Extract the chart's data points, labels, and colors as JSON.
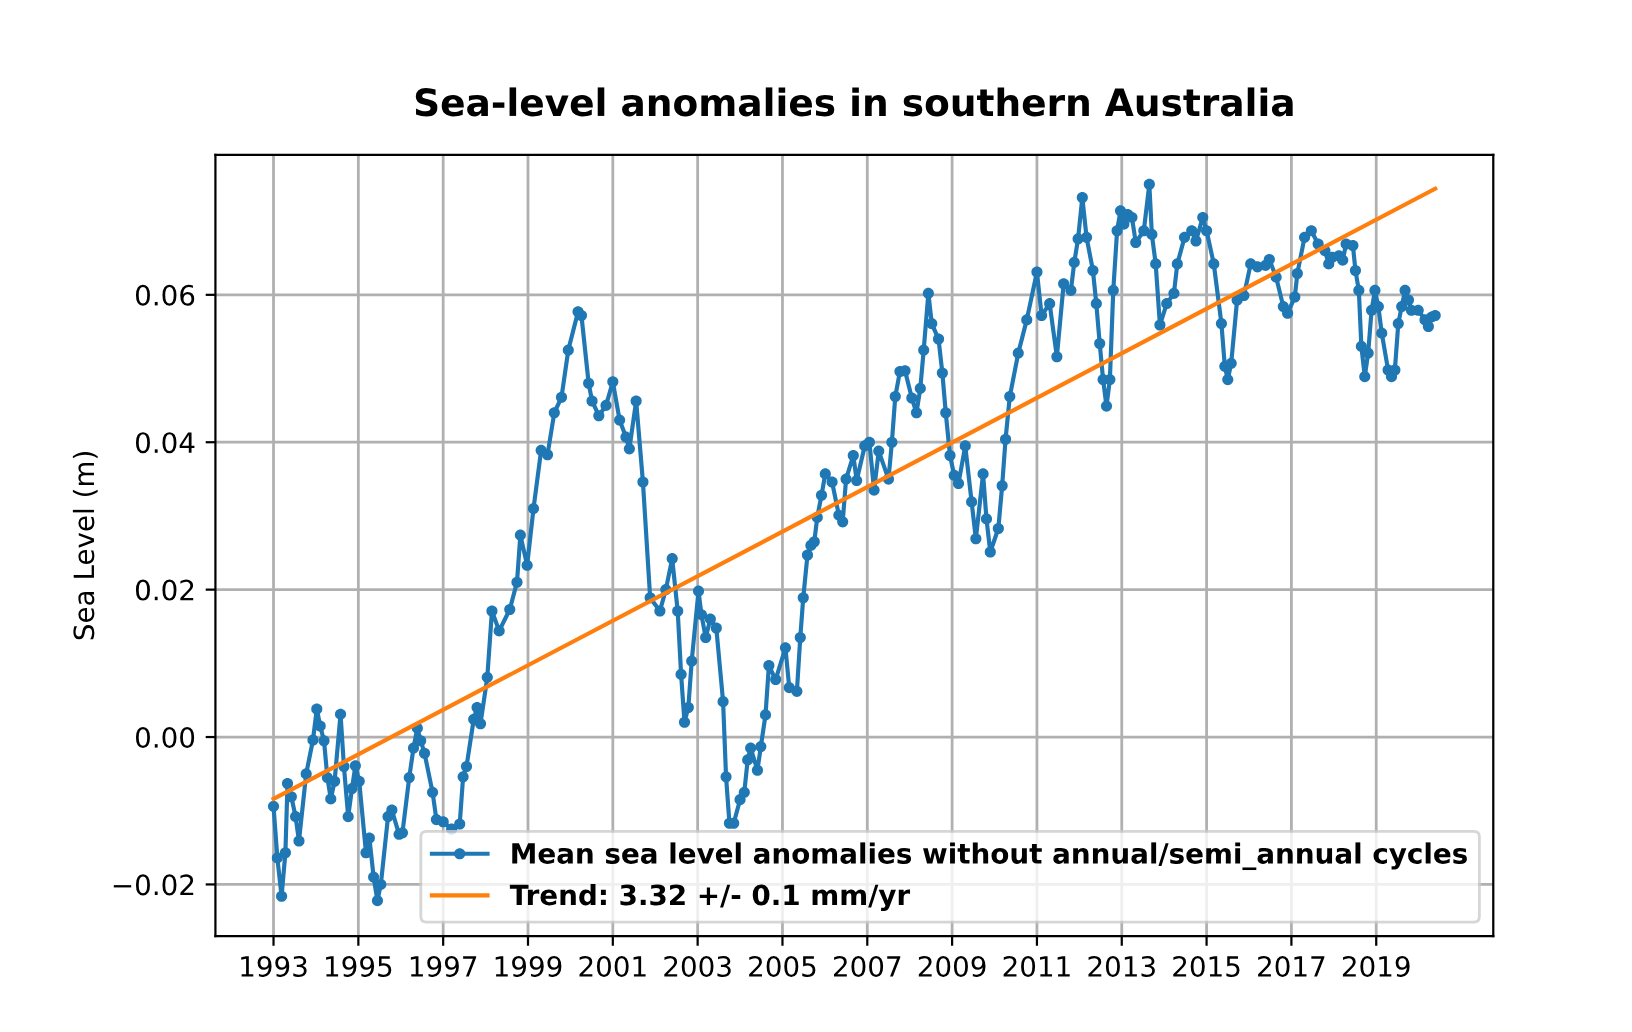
{
  "chart_data": {
    "type": "line",
    "title": "Sea-level anomalies in southern Australia",
    "ylabel": "Sea Level (m)",
    "series": [
      {
        "name": "Mean sea level anomalies without annual/semi_annual cycles",
        "color": "#1f77b4",
        "marker": "circle",
        "x": [
          1993.0,
          1993.09,
          1993.19,
          1993.28,
          1993.33,
          1993.42,
          1993.52,
          1993.6,
          1993.77,
          1993.93,
          1994.02,
          1994.1,
          1994.19,
          1994.27,
          1994.35,
          1994.44,
          1994.58,
          1994.66,
          1994.76,
          1994.85,
          1994.93,
          1995.02,
          1995.18,
          1995.26,
          1995.36,
          1995.45,
          1995.53,
          1995.7,
          1995.79,
          1995.96,
          1996.04,
          1996.2,
          1996.3,
          1996.39,
          1996.47,
          1996.56,
          1996.75,
          1996.84,
          1997.0,
          1997.2,
          1997.39,
          1997.47,
          1997.55,
          1997.72,
          1997.8,
          1997.88,
          1998.04,
          1998.15,
          1998.32,
          1998.57,
          1998.74,
          1998.82,
          1998.98,
          1999.13,
          1999.31,
          1999.46,
          1999.62,
          1999.79,
          1999.95,
          2000.18,
          2000.26,
          2000.43,
          2000.51,
          2000.67,
          2000.84,
          2001.0,
          2001.16,
          2001.31,
          2001.39,
          2001.55,
          2001.71,
          2001.88,
          2002.11,
          2002.25,
          2002.4,
          2002.53,
          2002.61,
          2002.69,
          2002.78,
          2002.86,
          2003.02,
          2003.09,
          2003.19,
          2003.3,
          2003.44,
          2003.6,
          2003.67,
          2003.75,
          2003.85,
          2004.0,
          2004.1,
          2004.18,
          2004.25,
          2004.41,
          2004.49,
          2004.6,
          2004.68,
          2004.84,
          2005.07,
          2005.16,
          2005.34,
          2005.42,
          2005.49,
          2005.59,
          2005.67,
          2005.75,
          2005.82,
          2005.92,
          2006.01,
          2006.17,
          2006.33,
          2006.42,
          2006.5,
          2006.67,
          2006.75,
          2006.94,
          2007.05,
          2007.16,
          2007.27,
          2007.5,
          2007.58,
          2007.66,
          2007.77,
          2007.89,
          2008.05,
          2008.16,
          2008.25,
          2008.33,
          2008.44,
          2008.52,
          2008.68,
          2008.77,
          2008.85,
          2008.95,
          2009.05,
          2009.15,
          2009.31,
          2009.46,
          2009.56,
          2009.73,
          2009.81,
          2009.9,
          2010.09,
          2010.18,
          2010.26,
          2010.36,
          2010.56,
          2010.76,
          2011.0,
          2011.11,
          2011.3,
          2011.47,
          2011.63,
          2011.8,
          2011.88,
          2011.97,
          2012.07,
          2012.17,
          2012.32,
          2012.4,
          2012.48,
          2012.56,
          2012.64,
          2012.72,
          2012.8,
          2012.89,
          2012.97,
          2013.05,
          2013.14,
          2013.24,
          2013.33,
          2013.52,
          2013.65,
          2013.71,
          2013.8,
          2013.9,
          2014.06,
          2014.23,
          2014.31,
          2014.48,
          2014.65,
          2014.75,
          2014.91,
          2015.0,
          2015.17,
          2015.35,
          2015.43,
          2015.5,
          2015.58,
          2015.72,
          2015.88,
          2016.04,
          2016.2,
          2016.39,
          2016.48,
          2016.64,
          2016.81,
          2016.91,
          2017.08,
          2017.14,
          2017.31,
          2017.47,
          2017.63,
          2017.79,
          2017.88,
          2017.96,
          2018.12,
          2018.21,
          2018.29,
          2018.45,
          2018.51,
          2018.59,
          2018.65,
          2018.73,
          2018.81,
          2018.89,
          2018.97,
          2019.05,
          2019.13,
          2019.28,
          2019.36,
          2019.44,
          2019.52,
          2019.6,
          2019.68,
          2019.76,
          2019.83,
          2019.99,
          2020.15,
          2020.23,
          2020.31,
          2020.39
        ],
        "values": [
          -0.0094,
          -0.0164,
          -0.0216,
          -0.0157,
          -0.0063,
          -0.0081,
          -0.0108,
          -0.0141,
          -0.005,
          -0.0004,
          0.0038,
          0.0015,
          -0.0005,
          -0.0055,
          -0.0084,
          -0.006,
          0.0031,
          -0.004,
          -0.0108,
          -0.007,
          -0.0039,
          -0.006,
          -0.0157,
          -0.0137,
          -0.019,
          -0.0222,
          -0.02,
          -0.0108,
          -0.0099,
          -0.0132,
          -0.013,
          -0.0055,
          -0.0015,
          0.0012,
          -0.0005,
          -0.0022,
          -0.0075,
          -0.0112,
          -0.0115,
          -0.0125,
          -0.0118,
          -0.0054,
          -0.004,
          0.0024,
          0.004,
          0.0018,
          0.0081,
          0.0171,
          0.0144,
          0.0173,
          0.021,
          0.0274,
          0.0233,
          0.031,
          0.0389,
          0.0383,
          0.044,
          0.0461,
          0.0525,
          0.0577,
          0.0572,
          0.048,
          0.0456,
          0.0436,
          0.045,
          0.0482,
          0.043,
          0.0407,
          0.0391,
          0.0456,
          0.0346,
          0.0189,
          0.0171,
          0.02,
          0.0242,
          0.0171,
          0.0085,
          0.002,
          0.004,
          0.0103,
          0.0198,
          0.0166,
          0.0135,
          0.016,
          0.0148,
          0.0048,
          -0.0054,
          -0.0117,
          -0.0117,
          -0.0085,
          -0.0075,
          -0.0031,
          -0.0015,
          -0.0045,
          -0.0013,
          0.003,
          0.0097,
          0.0078,
          0.0121,
          0.0067,
          0.0062,
          0.0135,
          0.0189,
          0.0247,
          0.026,
          0.0265,
          0.0298,
          0.0328,
          0.0357,
          0.0346,
          0.0301,
          0.0292,
          0.035,
          0.0382,
          0.0348,
          0.0395,
          0.04,
          0.0335,
          0.0388,
          0.035,
          0.04,
          0.0462,
          0.0496,
          0.0497,
          0.046,
          0.044,
          0.0473,
          0.0525,
          0.0602,
          0.0561,
          0.054,
          0.0494,
          0.044,
          0.0382,
          0.0355,
          0.0344,
          0.0395,
          0.0319,
          0.0269,
          0.0357,
          0.0296,
          0.0251,
          0.0283,
          0.0341,
          0.0404,
          0.0462,
          0.0521,
          0.0566,
          0.0631,
          0.0572,
          0.0588,
          0.0516,
          0.0615,
          0.0606,
          0.0644,
          0.0676,
          0.0732,
          0.0678,
          0.0633,
          0.0588,
          0.0534,
          0.0485,
          0.0449,
          0.0485,
          0.0606,
          0.0687,
          0.0714,
          0.0696,
          0.0709,
          0.0705,
          0.0671,
          0.0687,
          0.075,
          0.0682,
          0.0642,
          0.0559,
          0.0588,
          0.0602,
          0.0642,
          0.0678,
          0.0687,
          0.0673,
          0.0705,
          0.0687,
          0.0642,
          0.0561,
          0.0503,
          0.0485,
          0.0507,
          0.0593,
          0.0599,
          0.0642,
          0.0638,
          0.064,
          0.0648,
          0.0624,
          0.0584,
          0.0575,
          0.0597,
          0.0629,
          0.0678,
          0.0687,
          0.0669,
          0.066,
          0.0642,
          0.0651,
          0.0653,
          0.0647,
          0.0669,
          0.0667,
          0.0633,
          0.0606,
          0.053,
          0.0489,
          0.0521,
          0.0579,
          0.0606,
          0.0584,
          0.0548,
          0.0498,
          0.0489,
          0.0498,
          0.0561,
          0.0584,
          0.0606,
          0.0593,
          0.0579,
          0.0579,
          0.0566,
          0.0557,
          0.057,
          0.0572
        ]
      },
      {
        "name": "Trend: 3.32 +/- 0.1 mm/yr",
        "color": "#ff7f0e",
        "marker": "none",
        "x": [
          1993.0,
          2020.39
        ],
        "values": [
          -0.0084,
          0.0744
        ]
      }
    ],
    "xlim": [
      1991.63,
      2021.76
    ],
    "xticks": [
      1993,
      1995,
      1997,
      1999,
      2001,
      2003,
      2005,
      2007,
      2009,
      2011,
      2013,
      2015,
      2017,
      2019
    ],
    "ylim": [
      -0.027,
      0.079
    ],
    "yticks": [
      {
        "value": -0.02,
        "label": "−0.02"
      },
      {
        "value": 0,
        "label": "0.00"
      },
      0.02,
      0.04,
      0.06
    ],
    "grid": true,
    "legend": "bottom right"
  }
}
